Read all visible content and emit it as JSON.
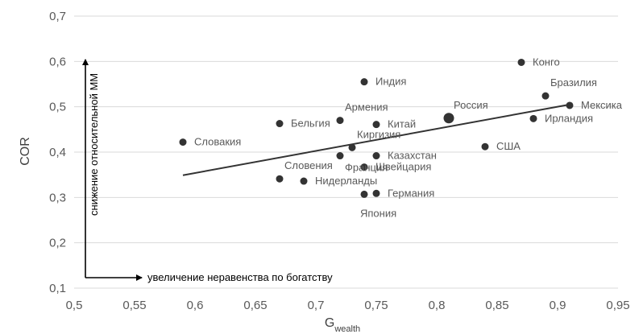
{
  "chart_data": {
    "type": "scatter",
    "title": "",
    "xlabel": "G",
    "xlabel_subscript": "wealth",
    "ylabel": "COR",
    "xlim": [
      0.5,
      0.95
    ],
    "ylim": [
      0.1,
      0.7
    ],
    "x_ticks": [
      "0,5",
      "0,55",
      "0,6",
      "0,65",
      "0,7",
      "0,75",
      "0,8",
      "0,85",
      "0,9",
      "0,95"
    ],
    "y_ticks": [
      "0,1",
      "0,2",
      "0,3",
      "0,4",
      "0,5",
      "0,6",
      "0,7"
    ],
    "grid": "horizontal",
    "colors": {
      "points": "#333333",
      "trendline": "#333333",
      "gridlines": "#d9d9d9",
      "ticks": "#595959"
    },
    "points": [
      {
        "label": "Словакия",
        "x": 0.59,
        "y": 0.422,
        "label_pos": "right"
      },
      {
        "label": "Бельгия",
        "x": 0.67,
        "y": 0.463,
        "label_pos": "right"
      },
      {
        "label": "Словения",
        "x": 0.67,
        "y": 0.341,
        "label_pos": "above-right"
      },
      {
        "label": "Нидерланды",
        "x": 0.69,
        "y": 0.336,
        "label_pos": "right"
      },
      {
        "label": "Армения",
        "x": 0.72,
        "y": 0.47,
        "label_pos": "above-right"
      },
      {
        "label": "Франция",
        "x": 0.72,
        "y": 0.392,
        "label_pos": "below-right"
      },
      {
        "label": "Киргизия",
        "x": 0.73,
        "y": 0.41,
        "label_pos": "above-right"
      },
      {
        "label": "Индия",
        "x": 0.74,
        "y": 0.555,
        "label_pos": "right"
      },
      {
        "label": "Швейцария",
        "x": 0.74,
        "y": 0.367,
        "label_pos": "right"
      },
      {
        "label": "Япония",
        "x": 0.74,
        "y": 0.307,
        "label_pos": "below"
      },
      {
        "label": "Китай",
        "x": 0.75,
        "y": 0.461,
        "label_pos": "right"
      },
      {
        "label": "Казахстан",
        "x": 0.75,
        "y": 0.392,
        "label_pos": "right"
      },
      {
        "label": "Германия",
        "x": 0.75,
        "y": 0.309,
        "label_pos": "right"
      },
      {
        "label": "Россия",
        "x": 0.81,
        "y": 0.475,
        "label_pos": "above-right",
        "highlight": true
      },
      {
        "label": "США",
        "x": 0.84,
        "y": 0.412,
        "label_pos": "right"
      },
      {
        "label": "Конго",
        "x": 0.87,
        "y": 0.598,
        "label_pos": "right"
      },
      {
        "label": "Бразилия",
        "x": 0.89,
        "y": 0.524,
        "label_pos": "above-right"
      },
      {
        "label": "Ирландия",
        "x": 0.88,
        "y": 0.474,
        "label_pos": "right"
      },
      {
        "label": "Мексика",
        "x": 0.91,
        "y": 0.503,
        "label_pos": "right"
      }
    ],
    "trendline": {
      "x1": 0.59,
      "y1": 0.349,
      "x2": 0.91,
      "y2": 0.505
    },
    "annotations": {
      "vertical_arrow_text": "снижение относительной ММ",
      "horizontal_arrow_text": "увеличение неравенства по богатству"
    }
  }
}
